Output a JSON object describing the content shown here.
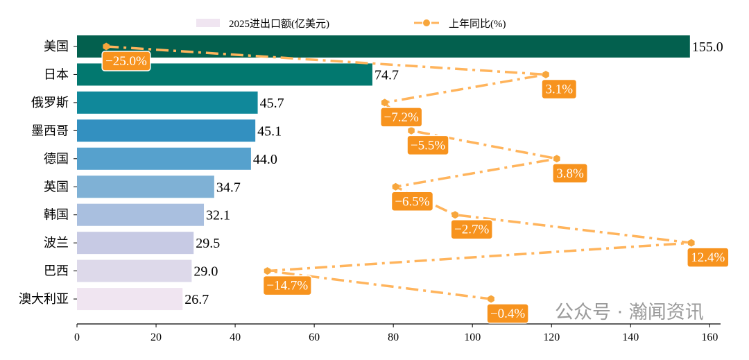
{
  "chart_data": {
    "type": "bar",
    "orientation": "horizontal",
    "categories": [
      "美国",
      "日本",
      "俄罗斯",
      "墨西哥",
      "德国",
      "英国",
      "韩国",
      "波兰",
      "巴西",
      "澳大利亚"
    ],
    "series": [
      {
        "name": "2025进出口额(亿美元)",
        "type": "bar",
        "values": [
          155.0,
          74.7,
          45.7,
          45.1,
          44.0,
          34.7,
          32.1,
          29.5,
          29.0,
          26.7
        ],
        "value_labels": [
          "155.0",
          "74.7",
          "45.7",
          "45.1",
          "44.0",
          "34.7",
          "32.1",
          "29.5",
          "29.0",
          "26.7"
        ],
        "colors": [
          "#03604e",
          "#02786f",
          "#10889a",
          "#3390c0",
          "#56a1cd",
          "#7fb1d5",
          "#a9bfdf",
          "#c7cae4",
          "#ddd9ea",
          "#f0e5f1"
        ]
      },
      {
        "name": "上年同比(%)",
        "type": "line",
        "style": "dash-dot",
        "marker": "hexagon",
        "values": [
          -25.0,
          3.1,
          -7.2,
          -5.5,
          3.8,
          -6.5,
          -2.7,
          12.4,
          -14.7,
          -0.4
        ],
        "value_labels": [
          "−25.0%",
          "3.1%",
          "−7.2%",
          "−5.5%",
          "3.8%",
          "−6.5%",
          "−2.7%",
          "12.4%",
          "−14.7%",
          "−0.4%"
        ],
        "color": "#ffb45c",
        "label_color": "#f7931e"
      }
    ],
    "xlim": [
      0,
      162.75
    ],
    "x2lim": [
      -26.87,
      14.27
    ],
    "xticks": [
      "0",
      "20",
      "40",
      "60",
      "80",
      "100",
      "120",
      "140",
      "160"
    ],
    "xlabel": "",
    "ylabel": "",
    "title": "",
    "grid": false,
    "legend": "top-center"
  },
  "watermark": "公众号 · 瀚闻资讯"
}
